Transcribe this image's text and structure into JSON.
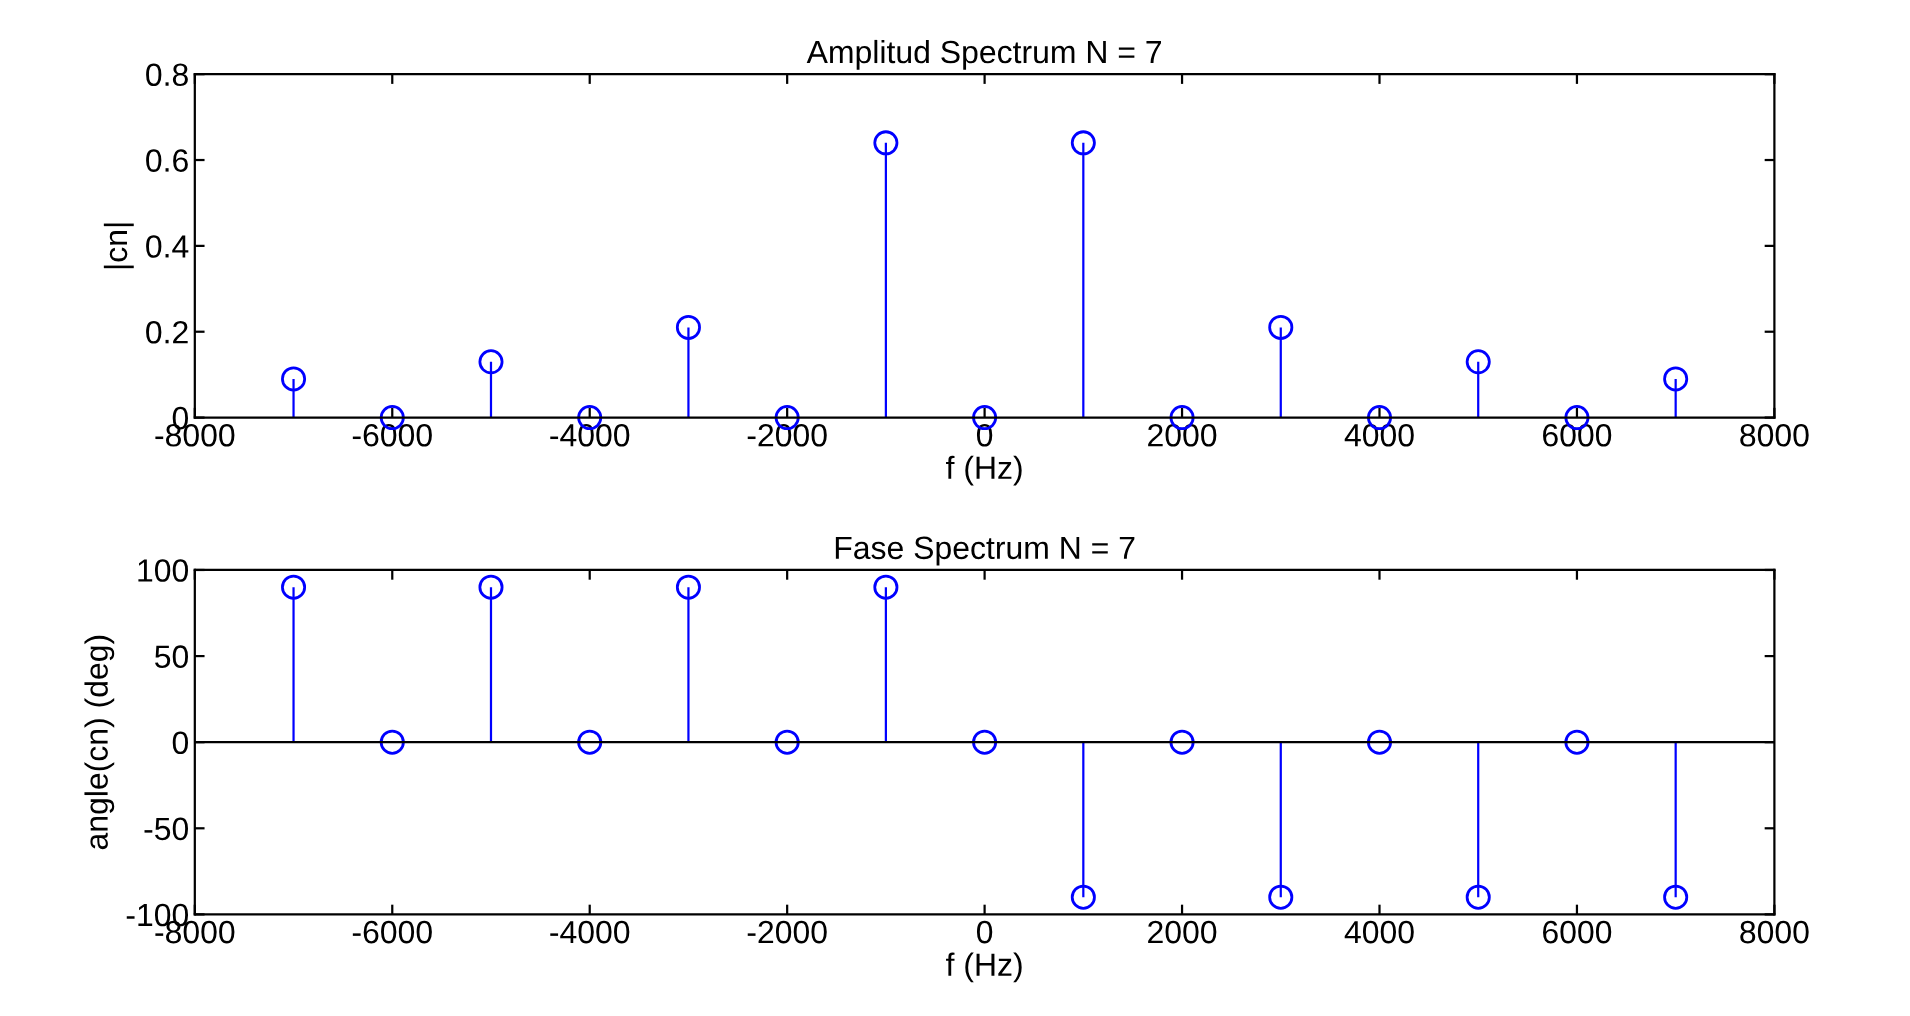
{
  "chart_data": [
    {
      "type": "lollipop",
      "title": "Amplitud Spectrum N = 7",
      "xlabel": "f (Hz)",
      "ylabel": "|cn|",
      "x": [
        -7000,
        -6000,
        -5000,
        -4000,
        -3000,
        -2000,
        -1000,
        0,
        1000,
        2000,
        3000,
        4000,
        5000,
        6000,
        7000
      ],
      "series": [
        {
          "color": "#0000ff",
          "values": [
            0.09,
            0,
            0.13,
            0,
            0.21,
            0,
            0.64,
            0,
            0.64,
            0,
            0.21,
            0,
            0.13,
            0,
            0.09
          ]
        }
      ],
      "xlim": [
        -8000,
        8000
      ],
      "xticks": [
        -8000,
        -6000,
        -4000,
        -2000,
        0,
        2000,
        4000,
        6000,
        8000
      ],
      "ylim": [
        0,
        0.8
      ],
      "yticks": [
        0,
        0.2,
        0.4,
        0.6,
        0.8
      ],
      "grid": false,
      "marker": "circle"
    },
    {
      "type": "lollipop",
      "title": "Fase Spectrum N = 7",
      "xlabel": "f (Hz)",
      "ylabel": "angle(cn) (deg)",
      "x": [
        -7000,
        -6000,
        -5000,
        -4000,
        -3000,
        -2000,
        -1000,
        0,
        1000,
        2000,
        3000,
        4000,
        5000,
        6000,
        7000
      ],
      "series": [
        {
          "color": "#0000ff",
          "values": [
            90,
            0,
            90,
            0,
            90,
            0,
            90,
            0,
            -90,
            0,
            -90,
            0,
            -90,
            0,
            -90
          ]
        }
      ],
      "xlim": [
        -8000,
        8000
      ],
      "xticks": [
        -8000,
        -6000,
        -4000,
        -2000,
        0,
        2000,
        4000,
        6000,
        8000
      ],
      "ylim": [
        -100,
        100
      ],
      "yticks": [
        -100,
        -50,
        0,
        50,
        100
      ],
      "grid": false,
      "marker": "circle",
      "ref_lines": [
        {
          "axis": "y",
          "value": 0,
          "color": "#000000"
        }
      ]
    }
  ]
}
